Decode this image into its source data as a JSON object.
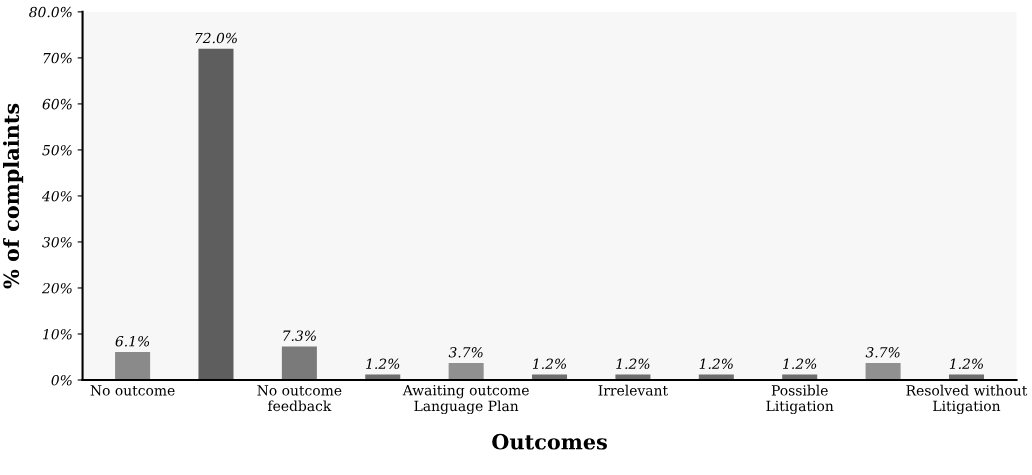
{
  "chart_data": {
    "type": "bar",
    "xlabel": "Outcomes",
    "ylabel": "% of complaints",
    "categories": [
      "No outcome",
      null,
      "No outcome\nfeedback",
      null,
      "Awaiting outcome\nLanguage Plan",
      null,
      "Irrelevant",
      null,
      "Possible\nLitigation",
      null,
      "Resolved without\nLitigation"
    ],
    "values": [
      6.1,
      72.0,
      7.3,
      1.2,
      3.7,
      1.2,
      1.2,
      1.2,
      1.2,
      3.7,
      1.2
    ],
    "value_labels": [
      "6.1%",
      "72.0%",
      "7.3%",
      "1.2%",
      "3.7%",
      "1.2%",
      "1.2%",
      "1.2%",
      "1.2%",
      "3.7%",
      "1.2%"
    ],
    "colors": [
      "#8a8a8a",
      "#5e5e5e",
      "#7a7a7a",
      "#6e6e6e",
      "#909090",
      "#6e6e6e",
      "#6e6e6e",
      "#6e6e6e",
      "#6e6e6e",
      "#909090",
      "#6e6e6e"
    ],
    "ylim": [
      0,
      80
    ],
    "yticks": [
      {
        "value": 0,
        "label": "0%"
      },
      {
        "value": 10,
        "label": "10%"
      },
      {
        "value": 20,
        "label": "20%"
      },
      {
        "value": 30,
        "label": "30%"
      },
      {
        "value": 40,
        "label": "40%"
      },
      {
        "value": 50,
        "label": "50%"
      },
      {
        "value": 60,
        "label": "60%"
      },
      {
        "value": 70,
        "label": "70%"
      },
      {
        "value": 80,
        "label": "80.0%"
      }
    ],
    "grid": false,
    "legend": false
  }
}
